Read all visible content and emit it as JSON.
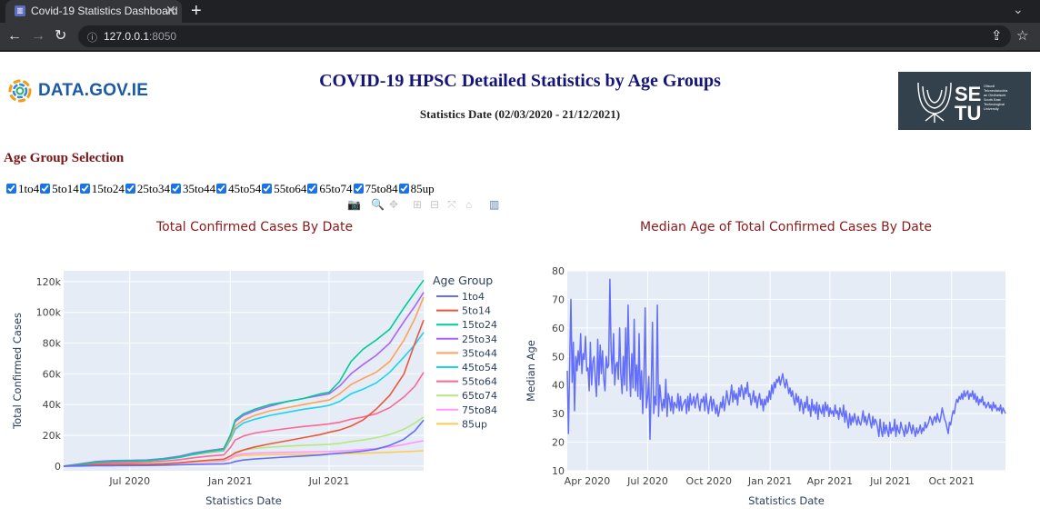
{
  "browser": {
    "tab_title": "Covid-19 Statistics Dashboard",
    "url_host": "127.0.0.1",
    "url_port": ":8050"
  },
  "header": {
    "logo_left": "DATA.GOV.IE",
    "title": "COVID-19 HPSC Detailed Statistics by Age Groups",
    "subtitle": "Statistics Date (02/03/2020 - 21/12/2021)",
    "logo_right": "SETU",
    "logo_right_small": [
      "Ollscoil",
      "Teicneolaíochta",
      "an Oirdheiscirt",
      "South East",
      "Technological",
      "University"
    ]
  },
  "age_selection": {
    "heading": "Age Group Selection",
    "options": [
      {
        "label": "1to4",
        "checked": true
      },
      {
        "label": "5to14",
        "checked": true
      },
      {
        "label": "15to24",
        "checked": true
      },
      {
        "label": "25to34",
        "checked": true
      },
      {
        "label": "35to44",
        "checked": true
      },
      {
        "label": "45to54",
        "checked": true
      },
      {
        "label": "55to64",
        "checked": true
      },
      {
        "label": "65to74",
        "checked": true
      },
      {
        "label": "75to84",
        "checked": true
      },
      {
        "label": "85up",
        "checked": true
      }
    ]
  },
  "modebar": [
    "camera-icon",
    "zoom-icon",
    "pan-icon",
    "zoom-in-icon",
    "zoom-out-icon",
    "autoscale-icon",
    "home-icon",
    "plotly-logo-icon"
  ],
  "chart_data": [
    {
      "type": "line",
      "title": "Total Confirmed Cases By Date",
      "xlabel": "Statistics Date",
      "ylabel": "Total Confirmed Cases",
      "x_ticks": [
        "Jul 2020",
        "Jan 2021",
        "Jul 2021"
      ],
      "y_ticks": [
        "0",
        "20k",
        "40k",
        "60k",
        "80k",
        "100k",
        "120k"
      ],
      "ylim": [
        -3000,
        127000
      ],
      "legend_title": "Age Group",
      "legend_position": "right",
      "grid": true,
      "x": [
        "2020-03-02",
        "2020-04-01",
        "2020-05-01",
        "2020-06-01",
        "2020-07-01",
        "2020-08-01",
        "2020-09-01",
        "2020-10-01",
        "2020-10-25",
        "2020-11-20",
        "2020-12-20",
        "2021-01-01",
        "2021-01-10",
        "2021-01-25",
        "2021-02-15",
        "2021-03-15",
        "2021-04-15",
        "2021-05-15",
        "2021-06-15",
        "2021-07-01",
        "2021-07-20",
        "2021-08-10",
        "2021-09-01",
        "2021-09-25",
        "2021-10-20",
        "2021-11-15",
        "2021-12-05",
        "2021-12-21"
      ],
      "series": [
        {
          "name": "1to4",
          "color": "#636efa",
          "values": [
            0,
            100,
            250,
            330,
            360,
            400,
            600,
            900,
            1100,
            1300,
            1500,
            2000,
            3000,
            4000,
            4600,
            5300,
            6000,
            6600,
            7200,
            7800,
            8400,
            9000,
            9800,
            11000,
            13500,
            17500,
            23000,
            30000
          ]
        },
        {
          "name": "5to14",
          "color": "#ef553b",
          "values": [
            0,
            300,
            800,
            1000,
            1050,
            1100,
            1500,
            2200,
            3000,
            3800,
            4500,
            6500,
            8500,
            10500,
            12500,
            14500,
            16500,
            18500,
            20500,
            22000,
            23500,
            26000,
            30000,
            37000,
            46000,
            60000,
            80000,
            95000
          ]
        },
        {
          "name": "15to24",
          "color": "#00cc96",
          "values": [
            0,
            1000,
            2500,
            3200,
            3400,
            3600,
            4500,
            6000,
            8000,
            9500,
            11000,
            20000,
            30000,
            34000,
            37000,
            40000,
            42000,
            44000,
            47000,
            48000,
            55000,
            68000,
            76000,
            82000,
            89000,
            103000,
            113000,
            121000
          ]
        },
        {
          "name": "25to34",
          "color": "#ab63fa",
          "values": [
            0,
            1500,
            3000,
            3600,
            3800,
            4000,
            5000,
            6500,
            8500,
            10000,
            11500,
            20000,
            29000,
            33000,
            36000,
            39000,
            42000,
            44000,
            46000,
            47000,
            52000,
            60000,
            66000,
            72000,
            80000,
            94000,
            104000,
            113000
          ]
        },
        {
          "name": "35to44",
          "color": "#ffa15a",
          "values": [
            0,
            1300,
            2700,
            3300,
            3500,
            3700,
            4600,
            6000,
            7800,
            9200,
            10500,
            18000,
            26000,
            30000,
            33000,
            36000,
            38000,
            40000,
            42000,
            43000,
            47000,
            53000,
            57000,
            61000,
            68000,
            82000,
            96000,
            110000
          ]
        },
        {
          "name": "45to54",
          "color": "#19d3f3",
          "values": [
            0,
            1200,
            2500,
            3100,
            3300,
            3500,
            4300,
            5700,
            7400,
            8800,
            10000,
            17000,
            24000,
            28000,
            30500,
            33000,
            35000,
            37000,
            38500,
            39500,
            42000,
            47000,
            50000,
            54000,
            61000,
            71000,
            79000,
            87000
          ]
        },
        {
          "name": "55to64",
          "color": "#ff6692",
          "values": [
            0,
            800,
            1800,
            2200,
            2400,
            2600,
            3200,
            4200,
            5400,
            6400,
            7300,
            12000,
            17000,
            19500,
            21500,
            23000,
            24500,
            25800,
            26800,
            27500,
            28500,
            30500,
            32000,
            34000,
            38000,
            45000,
            52000,
            61000
          ]
        },
        {
          "name": "65to74",
          "color": "#b6e880",
          "values": [
            0,
            400,
            900,
            1150,
            1250,
            1350,
            1700,
            2200,
            2900,
            3500,
            4100,
            6500,
            9000,
            10500,
            11500,
            12300,
            13000,
            13500,
            13900,
            14200,
            14800,
            16000,
            17000,
            18500,
            20500,
            24000,
            28000,
            32000
          ]
        },
        {
          "name": "75to84",
          "color": "#ff97ff",
          "values": [
            0,
            500,
            1100,
            1350,
            1400,
            1450,
            1700,
            2100,
            2600,
            3000,
            3400,
            5000,
            7000,
            8000,
            8500,
            8800,
            9000,
            9200,
            9400,
            9500,
            9800,
            10300,
            10800,
            11500,
            12500,
            14000,
            15500,
            16500
          ]
        },
        {
          "name": "85up",
          "color": "#fecb52",
          "values": [
            0,
            600,
            1300,
            1550,
            1600,
            1650,
            1850,
            2100,
            2500,
            2800,
            3200,
            4700,
            6300,
            7000,
            7300,
            7500,
            7600,
            7700,
            7800,
            7900,
            8000,
            8200,
            8400,
            8700,
            9000,
            9400,
            9700,
            10000
          ]
        }
      ]
    },
    {
      "type": "line",
      "title": "Median Age of Total Confirmed Cases By Date",
      "xlabel": "Statistics Date",
      "ylabel": "Median Age",
      "x_ticks": [
        "Apr 2020",
        "Jul 2020",
        "Oct 2020",
        "Jan 2021",
        "Apr 2021",
        "Jul 2021",
        "Oct 2021"
      ],
      "y_ticks": [
        "10",
        "20",
        "30",
        "40",
        "50",
        "60",
        "70",
        "80"
      ],
      "ylim": [
        10,
        80
      ],
      "grid": true,
      "series": [
        {
          "name": "",
          "color": "#636efa",
          "values": [
            45,
            23,
            48,
            70,
            41,
            55,
            31,
            50,
            45,
            52,
            47,
            58,
            44,
            51,
            49,
            57,
            45,
            46,
            38,
            55,
            40,
            48,
            50,
            42,
            36,
            56,
            40,
            54,
            44,
            52,
            42,
            38,
            50,
            46,
            47,
            77,
            52,
            44,
            58,
            40,
            47,
            48,
            42,
            60,
            44,
            37,
            50,
            40,
            60,
            38,
            68,
            47,
            36,
            51,
            39,
            63,
            38,
            47,
            36,
            58,
            35,
            45,
            30,
            43,
            67,
            32,
            36,
            43,
            21,
            40,
            62,
            30,
            36,
            33,
            68,
            29,
            40,
            35,
            31,
            35,
            32,
            42,
            29,
            37,
            35,
            31,
            36,
            30,
            34,
            33,
            32,
            37,
            31,
            36,
            31,
            33,
            34,
            35,
            30,
            36,
            31,
            37,
            33,
            34,
            36,
            32,
            35,
            37,
            33,
            31,
            35,
            34,
            36,
            31,
            37,
            33,
            30,
            34,
            36,
            31,
            35,
            33,
            30,
            33,
            29,
            31,
            34,
            32,
            36,
            31,
            34,
            38,
            35,
            33,
            36,
            40,
            34,
            38,
            35,
            37,
            33,
            39,
            36,
            40,
            38,
            35,
            39,
            37,
            41,
            36,
            37,
            33,
            35,
            38,
            34,
            36,
            32,
            35,
            37,
            33,
            35,
            31,
            35,
            33,
            36,
            34,
            38,
            35,
            40,
            37,
            41,
            39,
            42,
            41,
            43,
            40,
            42,
            44,
            41,
            39,
            42,
            40,
            37,
            39,
            36,
            38,
            35,
            33,
            37,
            34,
            36,
            31,
            35,
            33,
            30,
            34,
            32,
            36,
            31,
            33,
            29,
            35,
            31,
            33,
            30,
            34,
            28,
            33,
            31,
            30,
            33,
            29,
            34,
            31,
            33,
            29,
            32,
            30,
            31,
            29,
            33,
            30,
            31,
            28,
            32,
            30,
            29,
            33,
            27,
            31,
            28,
            25,
            30,
            26,
            29,
            27,
            30,
            28,
            26,
            29,
            27,
            26,
            28,
            31,
            27,
            29,
            26,
            28,
            30,
            27,
            25,
            29,
            26,
            28,
            27,
            25,
            22,
            28,
            24,
            22,
            27,
            23,
            26,
            24,
            22,
            27,
            23,
            25,
            24,
            28,
            22,
            26,
            24,
            23,
            27,
            25,
            24,
            22,
            26,
            23,
            24,
            27,
            25,
            23,
            26,
            24,
            22,
            25,
            23,
            24,
            26,
            23,
            25,
            24,
            27,
            25,
            26,
            27,
            29,
            28,
            26,
            28,
            29,
            27,
            30,
            28,
            27,
            29,
            32,
            30,
            28,
            27,
            25,
            23,
            27,
            26,
            29,
            31,
            30,
            33,
            35,
            34,
            36,
            35,
            37,
            35,
            38,
            36,
            37,
            38,
            35,
            37,
            36,
            38,
            35,
            37,
            34,
            36,
            33,
            35,
            34,
            36,
            33,
            34,
            32,
            33,
            34,
            32,
            33,
            31,
            34,
            32,
            33,
            31,
            32,
            31,
            33,
            30,
            32,
            31,
            30
          ]
        }
      ]
    }
  ]
}
